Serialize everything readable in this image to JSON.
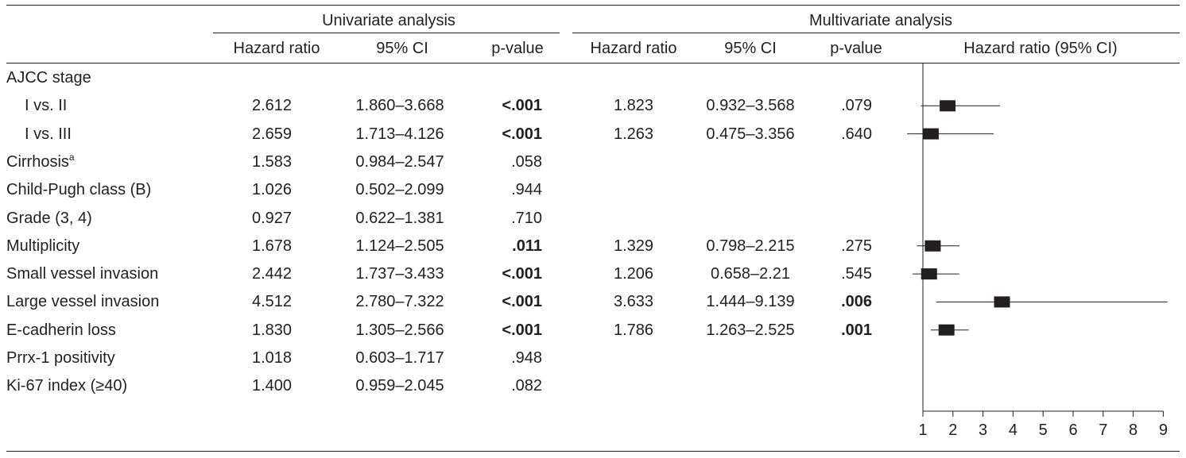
{
  "headers": {
    "univariate": "Univariate analysis",
    "multivariate": "Multivariate analysis",
    "columns": {
      "uni_hr": "Hazard ratio",
      "uni_ci": "95% CI",
      "uni_p": "p-value",
      "multi_hr": "Hazard ratio",
      "multi_ci": "95% CI",
      "multi_p": "p-value",
      "plot": "Hazard ratio (95% CI)"
    }
  },
  "rows": [
    {
      "label": "AJCC stage",
      "sup": "",
      "indent": false,
      "uni_hr": "",
      "uni_ci": "",
      "uni_p": "",
      "uni_p_bold": false,
      "multi_hr": "",
      "multi_ci": "",
      "multi_p": "",
      "multi_p_bold": false
    },
    {
      "label": "I vs. II",
      "sup": "",
      "indent": true,
      "uni_hr": "2.612",
      "uni_ci": "1.860–3.668",
      "uni_p": "<.001",
      "uni_p_bold": true,
      "multi_hr": "1.823",
      "multi_ci": "0.932–3.568",
      "multi_p": ".079",
      "multi_p_bold": false
    },
    {
      "label": "I vs. III",
      "sup": "",
      "indent": true,
      "uni_hr": "2.659",
      "uni_ci": "1.713–4.126",
      "uni_p": "<.001",
      "uni_p_bold": true,
      "multi_hr": "1.263",
      "multi_ci": "0.475–3.356",
      "multi_p": ".640",
      "multi_p_bold": false
    },
    {
      "label": "Cirrhosis",
      "sup": "a",
      "indent": false,
      "uni_hr": "1.583",
      "uni_ci": "0.984–2.547",
      "uni_p": ".058",
      "uni_p_bold": false,
      "multi_hr": "",
      "multi_ci": "",
      "multi_p": "",
      "multi_p_bold": false
    },
    {
      "label": "Child-Pugh class (B)",
      "sup": "",
      "indent": false,
      "uni_hr": "1.026",
      "uni_ci": "0.502–2.099",
      "uni_p": ".944",
      "uni_p_bold": false,
      "multi_hr": "",
      "multi_ci": "",
      "multi_p": "",
      "multi_p_bold": false
    },
    {
      "label": "Grade (3, 4)",
      "sup": "",
      "indent": false,
      "uni_hr": "0.927",
      "uni_ci": "0.622–1.381",
      "uni_p": ".710",
      "uni_p_bold": false,
      "multi_hr": "",
      "multi_ci": "",
      "multi_p": "",
      "multi_p_bold": false
    },
    {
      "label": "Multiplicity",
      "sup": "",
      "indent": false,
      "uni_hr": "1.678",
      "uni_ci": "1.124–2.505",
      "uni_p": ".011",
      "uni_p_bold": true,
      "multi_hr": "1.329",
      "multi_ci": "0.798–2.215",
      "multi_p": ".275",
      "multi_p_bold": false
    },
    {
      "label": "Small vessel invasion",
      "sup": "",
      "indent": false,
      "uni_hr": "2.442",
      "uni_ci": "1.737–3.433",
      "uni_p": "<.001",
      "uni_p_bold": true,
      "multi_hr": "1.206",
      "multi_ci": "0.658–2.21",
      "multi_p": ".545",
      "multi_p_bold": false
    },
    {
      "label": "Large vessel invasion",
      "sup": "",
      "indent": false,
      "uni_hr": "4.512",
      "uni_ci": "2.780–7.322",
      "uni_p": "<.001",
      "uni_p_bold": true,
      "multi_hr": "3.633",
      "multi_ci": "1.444–9.139",
      "multi_p": ".006",
      "multi_p_bold": true
    },
    {
      "label": "E-cadherin loss",
      "sup": "",
      "indent": false,
      "uni_hr": "1.830",
      "uni_ci": "1.305–2.566",
      "uni_p": "<.001",
      "uni_p_bold": true,
      "multi_hr": "1.786",
      "multi_ci": "1.263–2.525",
      "multi_p": ".001",
      "multi_p_bold": true
    },
    {
      "label": "Prrx-1 positivity",
      "sup": "",
      "indent": false,
      "uni_hr": "1.018",
      "uni_ci": "0.603–1.717",
      "uni_p": ".948",
      "uni_p_bold": false,
      "multi_hr": "",
      "multi_ci": "",
      "multi_p": "",
      "multi_p_bold": false
    },
    {
      "label": "Ki-67 index (≥40)",
      "sup": "",
      "indent": false,
      "uni_hr": "1.400",
      "uni_ci": "0.959–2.045",
      "uni_p": ".082",
      "uni_p_bold": false,
      "multi_hr": "",
      "multi_ci": "",
      "multi_p": "",
      "multi_p_bold": false
    }
  ],
  "chart_data": {
    "type": "forest",
    "title": "Hazard ratio (95% CI)",
    "xlim": [
      1,
      9
    ],
    "ticks": [
      "1",
      "2",
      "3",
      "4",
      "5",
      "6",
      "7",
      "8",
      "9"
    ],
    "points": [
      {
        "row": 1,
        "hr": 1.823,
        "lo": 0.932,
        "hi": 3.568
      },
      {
        "row": 2,
        "hr": 1.263,
        "lo": 0.475,
        "hi": 3.356
      },
      {
        "row": 6,
        "hr": 1.329,
        "lo": 0.798,
        "hi": 2.215
      },
      {
        "row": 7,
        "hr": 1.206,
        "lo": 0.658,
        "hi": 2.21
      },
      {
        "row": 8,
        "hr": 3.633,
        "lo": 1.444,
        "hi": 9.139
      },
      {
        "row": 9,
        "hr": 1.786,
        "lo": 1.263,
        "hi": 2.525
      }
    ]
  }
}
